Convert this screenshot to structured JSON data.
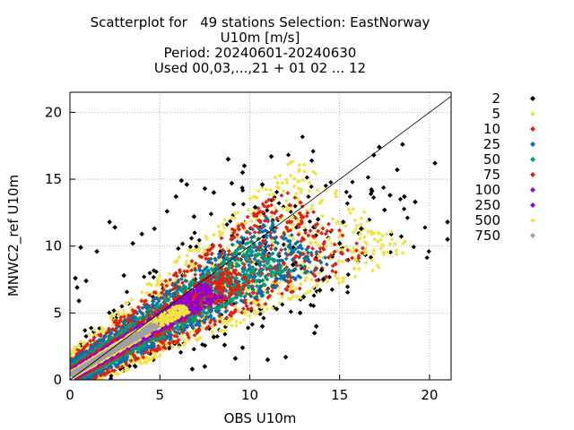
{
  "chart_data": {
    "type": "scatter",
    "title_lines": [
      "Scatterplot for   49 stations Selection: EastNorway",
      "U10m [m/s]",
      "Period: 20240601-20240630",
      "Used 00,03,...,21 + 01 02 ... 12"
    ],
    "xlabel": "OBS U10m",
    "ylabel": "MNWC2_ref U10m",
    "xlim": [
      0,
      21.2
    ],
    "ylim": [
      0,
      21.5
    ],
    "x_ticks": [
      0,
      5,
      10,
      15,
      20
    ],
    "y_ticks": [
      0,
      5,
      10,
      15,
      20
    ],
    "grid": true,
    "diagonal_line": "y = x",
    "legend_placement": "right, outside",
    "legend": [
      {
        "label": "2",
        "color": "#000000",
        "marker": "diamond"
      },
      {
        "label": "5",
        "color": "#f0e442",
        "marker": "diamond"
      },
      {
        "label": "10",
        "color": "#e51e10",
        "marker": "diamond"
      },
      {
        "label": "25",
        "color": "#0072b2",
        "marker": "diamond"
      },
      {
        "label": "50",
        "color": "#009e73",
        "marker": "diamond"
      },
      {
        "label": "75",
        "color": "#e51e10",
        "marker": "diamond"
      },
      {
        "label": "100",
        "color": "#9400d3",
        "marker": "diamond"
      },
      {
        "label": "250",
        "color": "#9400d3",
        "marker": "diamond"
      },
      {
        "label": "500",
        "color": "#f0e442",
        "marker": "diamond"
      },
      {
        "label": "750",
        "color": "#a0a0a0",
        "marker": "diamond"
      }
    ],
    "density_bands": [
      {
        "count_class": "2",
        "color": "#000000",
        "spread": 3.4
      },
      {
        "count_class": "5",
        "color": "#f0e442",
        "spread": 2.8
      },
      {
        "count_class": "10",
        "color": "#e51e10",
        "spread": 2.2
      },
      {
        "count_class": "25",
        "color": "#0072b2",
        "spread": 1.7
      },
      {
        "count_class": "50",
        "color": "#009e73",
        "spread": 1.2
      },
      {
        "count_class": "75",
        "color": "#e51e10",
        "spread": 0.9
      },
      {
        "count_class": "100",
        "color": "#9400d3",
        "spread": 0.7
      },
      {
        "count_class": "500",
        "color": "#f0e442",
        "spread": 0.45
      },
      {
        "count_class": "750",
        "color": "#a0a0a0",
        "spread": 0.25
      }
    ],
    "sample_points": [
      [
        21.0,
        11.8
      ],
      [
        21.0,
        10.5
      ],
      [
        20.3,
        16.2
      ],
      [
        19.2,
        13.3
      ],
      [
        18.6,
        13.7
      ],
      [
        18.2,
        15.7
      ],
      [
        17.8,
        13.8
      ],
      [
        18.5,
        17.6
      ],
      [
        16.9,
        16.8
      ],
      [
        17.2,
        17.4
      ],
      [
        16.2,
        11.3
      ],
      [
        15.2,
        11.8
      ],
      [
        14.1,
        7.5
      ],
      [
        13.9,
        6.7
      ],
      [
        14.0,
        8.2
      ],
      [
        13.8,
        12.0
      ],
      [
        13.0,
        6.2
      ],
      [
        12.8,
        5.0
      ],
      [
        12.4,
        8.6
      ],
      [
        11.5,
        5.3
      ],
      [
        11.2,
        16.7
      ],
      [
        10.7,
        14.6
      ],
      [
        10.3,
        12.9
      ],
      [
        9.6,
        15.5
      ],
      [
        9.7,
        16.0
      ],
      [
        9.0,
        14.7
      ],
      [
        8.8,
        16.5
      ],
      [
        8.0,
        14.0
      ],
      [
        7.5,
        14.3
      ],
      [
        6.9,
        12.2
      ],
      [
        5.9,
        13.7
      ],
      [
        6.2,
        14.9
      ],
      [
        6.5,
        14.6
      ],
      [
        4.0,
        10.9
      ],
      [
        4.7,
        11.3
      ],
      [
        5.4,
        12.6
      ],
      [
        2.2,
        11.8
      ],
      [
        2.5,
        11.4
      ],
      [
        3.5,
        10.2
      ],
      [
        0.6,
        9.9
      ],
      [
        1.5,
        9.6
      ],
      [
        0.3,
        7.6
      ],
      [
        0.4,
        6.9
      ],
      [
        0.9,
        7.4
      ],
      [
        0.5,
        5.9
      ],
      [
        8.6,
        2.6
      ],
      [
        8.0,
        3.2
      ],
      [
        9.6,
        2.4
      ],
      [
        9.2,
        1.6
      ],
      [
        12.0,
        1.7
      ],
      [
        13.6,
        3.5
      ],
      [
        13.7,
        4.0
      ],
      [
        10.7,
        4.0
      ],
      [
        16.8,
        14.1
      ],
      [
        17.5,
        12.7
      ],
      [
        15.0,
        10.2
      ],
      [
        7.5,
        1.0
      ],
      [
        6.8,
        0.8
      ],
      [
        11.0,
        1.5
      ],
      [
        3.0,
        7.8
      ]
    ]
  }
}
